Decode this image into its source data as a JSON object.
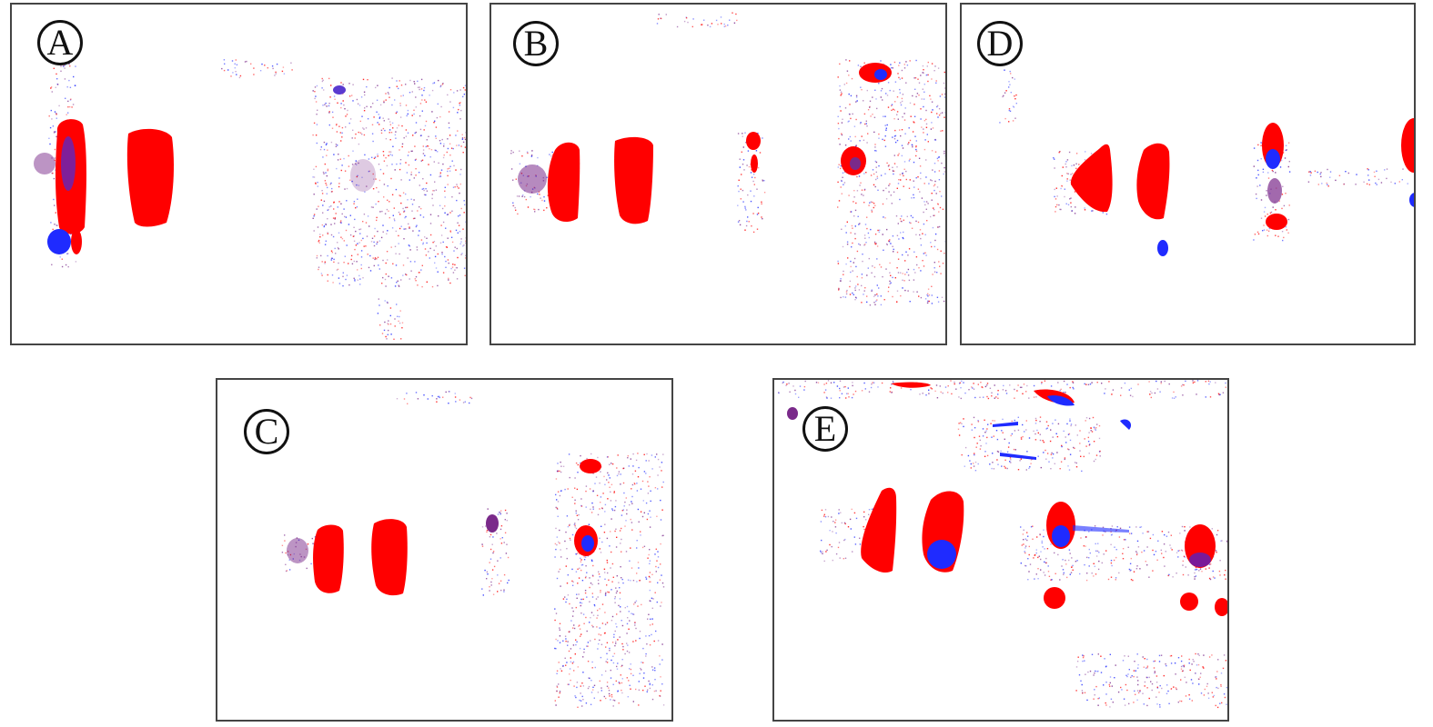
{
  "colors": {
    "primary_stain": "#ff0000",
    "secondary_stain": "#1f2bff",
    "overlap": "#7a2a8a",
    "frame": "#444444",
    "background": "#ffffff"
  },
  "panels": [
    {
      "id": "A",
      "label": "A"
    },
    {
      "id": "B",
      "label": "B"
    },
    {
      "id": "D",
      "label": "D"
    },
    {
      "id": "C",
      "label": "C"
    },
    {
      "id": "E",
      "label": "E"
    }
  ]
}
